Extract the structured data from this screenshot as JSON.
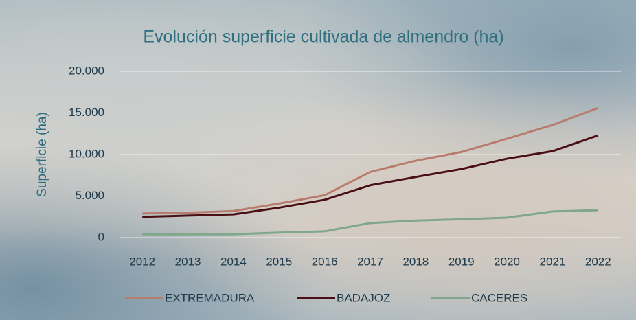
{
  "chart_data": {
    "type": "line",
    "title": "Evolución superficie cultivada de almendro (ha)",
    "y_label": "Superficie (ha)",
    "categories": [
      "2012",
      "2013",
      "2014",
      "2015",
      "2016",
      "2017",
      "2018",
      "2019",
      "2020",
      "2021",
      "2022"
    ],
    "series": [
      {
        "name": "EXTREMADURA",
        "color": "#b77c6e",
        "values": [
          2900,
          3000,
          3200,
          4100,
          5100,
          7900,
          9250,
          10300,
          11900,
          13550,
          15600
        ]
      },
      {
        "name": "BADAJOZ",
        "color": "#4a0f14",
        "values": [
          2500,
          2650,
          2800,
          3600,
          4550,
          6300,
          7300,
          8250,
          9500,
          10400,
          12300
        ]
      },
      {
        "name": "CACERES",
        "color": "#7fa88a",
        "values": [
          400,
          400,
          400,
          600,
          750,
          1750,
          2050,
          2200,
          2400,
          3150,
          3300
        ]
      }
    ],
    "ylim": [
      0,
      20000
    ],
    "yticks": [
      0,
      {
        "value": 5000,
        "label": "5.000"
      },
      {
        "value": 10000,
        "label": "10.000"
      },
      {
        "value": 15000,
        "label": "15.000"
      },
      {
        "value": 20000,
        "label": "20.000"
      }
    ],
    "grid": true,
    "legend": "bottom"
  }
}
